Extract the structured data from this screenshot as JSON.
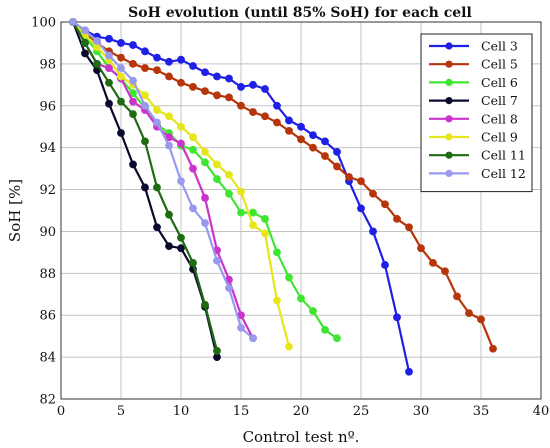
{
  "chart_data": {
    "type": "line",
    "title": "SoH evolution (until 85% SoH) for each cell",
    "xlabel": "Control test nº.",
    "ylabel": "SoH [%]",
    "xlim": [
      0,
      40
    ],
    "ylim": [
      82,
      100
    ],
    "xticks": [
      0,
      5,
      10,
      15,
      20,
      25,
      30,
      35,
      40
    ],
    "yticks": [
      82,
      84,
      86,
      88,
      90,
      92,
      94,
      96,
      98,
      100
    ],
    "grid": true,
    "legend_position": "top-right",
    "series": [
      {
        "name": "Cell 3",
        "color": "#1f1fe6",
        "x": [
          1,
          2,
          3,
          4,
          5,
          6,
          7,
          8,
          9,
          10,
          11,
          12,
          13,
          14,
          15,
          16,
          17,
          18,
          19,
          20,
          21,
          22,
          23,
          24,
          25,
          26,
          27,
          28,
          29
        ],
        "y": [
          100,
          99.6,
          99.3,
          99.2,
          99.0,
          98.9,
          98.6,
          98.3,
          98.1,
          98.2,
          97.9,
          97.6,
          97.4,
          97.3,
          96.9,
          97.0,
          96.8,
          96.0,
          95.3,
          95.0,
          94.6,
          94.3,
          93.8,
          92.4,
          91.1,
          90.0,
          88.4,
          85.9,
          83.3
        ]
      },
      {
        "name": "Cell 5",
        "color": "#b7350a",
        "x": [
          1,
          2,
          3,
          4,
          5,
          6,
          7,
          8,
          9,
          10,
          11,
          12,
          13,
          14,
          15,
          16,
          17,
          18,
          19,
          20,
          21,
          22,
          23,
          24,
          25,
          26,
          27,
          28,
          29,
          30,
          31,
          32,
          33,
          34,
          35,
          36
        ],
        "y": [
          100,
          99.5,
          99.0,
          98.6,
          98.3,
          98.0,
          97.8,
          97.7,
          97.4,
          97.1,
          96.9,
          96.7,
          96.5,
          96.4,
          96.0,
          95.7,
          95.5,
          95.2,
          94.8,
          94.4,
          94.0,
          93.6,
          93.1,
          92.6,
          92.4,
          91.8,
          91.3,
          90.6,
          90.2,
          89.2,
          88.5,
          88.1,
          86.9,
          86.1,
          85.8,
          84.4
        ]
      },
      {
        "name": "Cell 6",
        "color": "#3ee632",
        "x": [
          1,
          2,
          3,
          4,
          5,
          6,
          7,
          8,
          9,
          10,
          11,
          12,
          13,
          14,
          15,
          16,
          17,
          18,
          19,
          20,
          21,
          22,
          23
        ],
        "y": [
          100,
          99.3,
          98.6,
          97.8,
          97.3,
          96.6,
          95.9,
          95.1,
          94.7,
          94.1,
          93.9,
          93.3,
          92.5,
          91.8,
          90.9,
          90.9,
          90.6,
          89.0,
          87.8,
          86.8,
          86.2,
          85.3,
          84.9
        ]
      },
      {
        "name": "Cell 7",
        "color": "#0a0a2e",
        "x": [
          1,
          2,
          3,
          4,
          5,
          6,
          7,
          8,
          9,
          10,
          11,
          12,
          13
        ],
        "y": [
          100,
          98.5,
          97.7,
          96.1,
          94.7,
          93.2,
          92.1,
          90.2,
          89.3,
          89.2,
          88.2,
          86.4,
          84.0
        ]
      },
      {
        "name": "Cell 8",
        "color": "#cc33cc",
        "x": [
          1,
          2,
          3,
          4,
          5,
          6,
          7,
          8,
          9,
          10,
          11,
          12,
          13,
          14,
          15,
          16
        ],
        "y": [
          100,
          99.0,
          98.0,
          97.8,
          97.3,
          96.2,
          95.8,
          95.0,
          94.5,
          94.2,
          93.0,
          91.6,
          89.1,
          87.7,
          86.0,
          84.9
        ]
      },
      {
        "name": "Cell 9",
        "color": "#e6e61a",
        "x": [
          1,
          2,
          3,
          4,
          5,
          6,
          7,
          8,
          9,
          10,
          11,
          12,
          13,
          14,
          15,
          16,
          17,
          18,
          19
        ],
        "y": [
          100,
          99.4,
          98.8,
          98.2,
          97.4,
          97.0,
          96.5,
          95.8,
          95.5,
          95.0,
          94.5,
          93.8,
          93.2,
          92.7,
          91.9,
          90.3,
          89.9,
          86.7,
          84.5
        ]
      },
      {
        "name": "Cell 11",
        "color": "#1e6b12",
        "x": [
          1,
          2,
          3,
          4,
          5,
          6,
          7,
          8,
          9,
          10,
          11,
          12,
          13
        ],
        "y": [
          100,
          99.0,
          98.0,
          97.1,
          96.2,
          95.6,
          94.3,
          92.1,
          90.8,
          89.7,
          88.5,
          86.5,
          84.3
        ]
      },
      {
        "name": "Cell 12",
        "color": "#9999ee",
        "x": [
          1,
          2,
          3,
          4,
          5,
          6,
          7,
          8,
          9,
          10,
          11,
          12,
          13,
          14,
          15,
          16
        ],
        "y": [
          100,
          99.6,
          99.1,
          98.4,
          97.8,
          97.2,
          96.0,
          95.2,
          94.1,
          92.4,
          91.1,
          90.4,
          88.6,
          87.3,
          85.4,
          84.9
        ]
      }
    ]
  }
}
